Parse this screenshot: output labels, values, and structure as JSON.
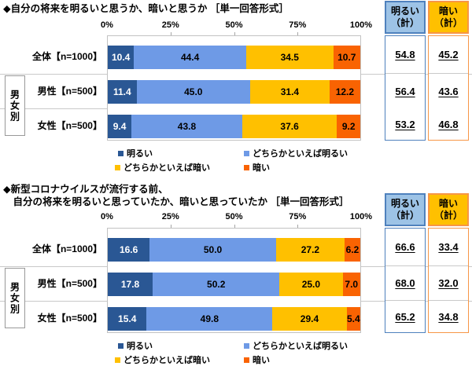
{
  "page": {
    "background": "#FFFFFF"
  },
  "chart_data": [
    {
      "type": "bar",
      "orientation": "horizontal",
      "stacked": true,
      "title": "◆自分の将来を明るいと思うか、暗いと思うか ［単一回答形式］",
      "title_lines": [
        "◆自分の将来を明るいと思うか、暗いと思うか ［単一回答形式］"
      ],
      "x_ticks": [
        "0%",
        "25%",
        "50%",
        "75%",
        "100%"
      ],
      "xlim": [
        0,
        100
      ],
      "grid": false,
      "legend_position": "bottom",
      "categories": [
        "全体【n=1000】",
        "男性【n=500】",
        "女性【n=500】"
      ],
      "group_label": "男女別",
      "series": [
        {
          "name": "明るい",
          "color": "#2A5794",
          "text_color": "#FFFFFF",
          "values": [
            10.4,
            11.4,
            9.4
          ]
        },
        {
          "name": "どちらかといえば明るい",
          "color": "#6E9AE6",
          "text_color": "#000000",
          "values": [
            44.4,
            45.0,
            43.8
          ]
        },
        {
          "name": "どちらかといえば暗い",
          "color": "#FFC000",
          "text_color": "#000000",
          "values": [
            34.5,
            31.4,
            37.6
          ]
        },
        {
          "name": "暗い",
          "color": "#F96302",
          "text_color": "#000000",
          "values": [
            10.7,
            12.2,
            9.2
          ]
        }
      ],
      "summary_columns": [
        {
          "header_lines": [
            "明るい",
            "（計）"
          ],
          "header_bg": "#9DC3E6",
          "border_color": "#4F81BD",
          "values": [
            54.8,
            56.4,
            53.2
          ]
        },
        {
          "header_lines": [
            "暗い",
            "（計）"
          ],
          "header_bg": "#FFC000",
          "border_color": "#F79646",
          "values": [
            45.2,
            43.6,
            46.8
          ]
        }
      ]
    },
    {
      "type": "bar",
      "orientation": "horizontal",
      "stacked": true,
      "title": "◆新型コロナウイルスが流行する前、自分の将来を明るいと思っていたか、暗いと思っていたか ［単一回答形式］",
      "title_lines": [
        "◆新型コロナウイルスが流行する前、",
        "　自分の将来を明るいと思っていたか、暗いと思っていたか ［単一回答形式］"
      ],
      "x_ticks": [
        "0%",
        "25%",
        "50%",
        "75%",
        "100%"
      ],
      "xlim": [
        0,
        100
      ],
      "grid": false,
      "legend_position": "bottom",
      "categories": [
        "全体【n=1000】",
        "男性【n=500】",
        "女性【n=500】"
      ],
      "group_label": "男女別",
      "series": [
        {
          "name": "明るい",
          "color": "#2A5794",
          "text_color": "#FFFFFF",
          "values": [
            16.6,
            17.8,
            15.4
          ]
        },
        {
          "name": "どちらかといえば明るい",
          "color": "#6E9AE6",
          "text_color": "#000000",
          "values": [
            50.0,
            50.2,
            49.8
          ]
        },
        {
          "name": "どちらかといえば暗い",
          "color": "#FFC000",
          "text_color": "#000000",
          "values": [
            27.2,
            25.0,
            29.4
          ]
        },
        {
          "name": "暗い",
          "color": "#F96302",
          "text_color": "#000000",
          "values": [
            6.2,
            7.0,
            5.4
          ]
        }
      ],
      "summary_columns": [
        {
          "header_lines": [
            "明るい",
            "（計）"
          ],
          "header_bg": "#9DC3E6",
          "border_color": "#4F81BD",
          "values": [
            66.6,
            68.0,
            65.2
          ]
        },
        {
          "header_lines": [
            "暗い",
            "（計）"
          ],
          "header_bg": "#FFC000",
          "border_color": "#F79646",
          "values": [
            33.4,
            32.0,
            34.8
          ]
        }
      ]
    }
  ]
}
